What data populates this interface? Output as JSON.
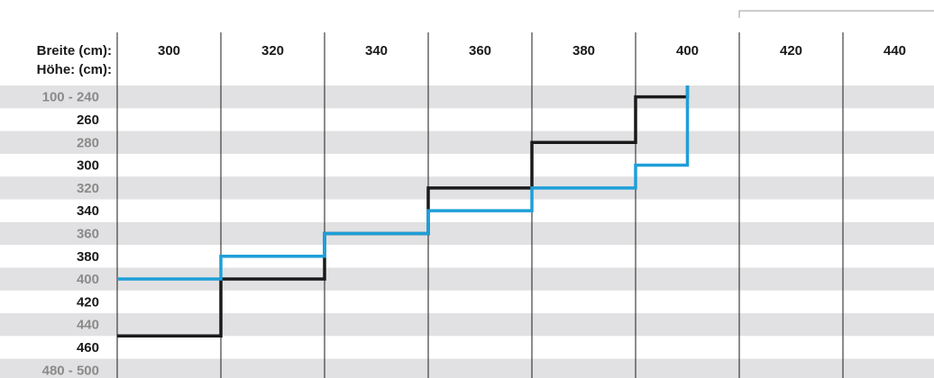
{
  "chart_data": {
    "type": "line",
    "x_label": "Breite (cm):",
    "y_label": "Höhe: (cm):",
    "x_categories": [
      "300",
      "320",
      "340",
      "360",
      "380",
      "400",
      "420",
      "440"
    ],
    "y_categories": [
      "100 - 240",
      "260",
      "280",
      "300",
      "320",
      "340",
      "360",
      "380",
      "400",
      "420",
      "440",
      "460",
      "480 - 500"
    ],
    "series": [
      {
        "color": "#1a1a1a",
        "style": "step",
        "points": [
          {
            "x": 300,
            "y": 460
          },
          {
            "x": 320,
            "y": 410
          },
          {
            "x": 340,
            "y": 370
          },
          {
            "x": 360,
            "y": 330
          },
          {
            "x": 380,
            "y": 290
          },
          {
            "x": 400,
            "y": 250
          },
          {
            "x": 410,
            "y": 240
          }
        ]
      },
      {
        "color": "#1e9fd8",
        "style": "step",
        "points": [
          {
            "x": 300,
            "y": 410
          },
          {
            "x": 320,
            "y": 390
          },
          {
            "x": 340,
            "y": 370
          },
          {
            "x": 360,
            "y": 350
          },
          {
            "x": 380,
            "y": 330
          },
          {
            "x": 400,
            "y": 310
          },
          {
            "x": 410,
            "y": 240
          }
        ]
      }
    ],
    "grid": true,
    "row_banding": true
  }
}
